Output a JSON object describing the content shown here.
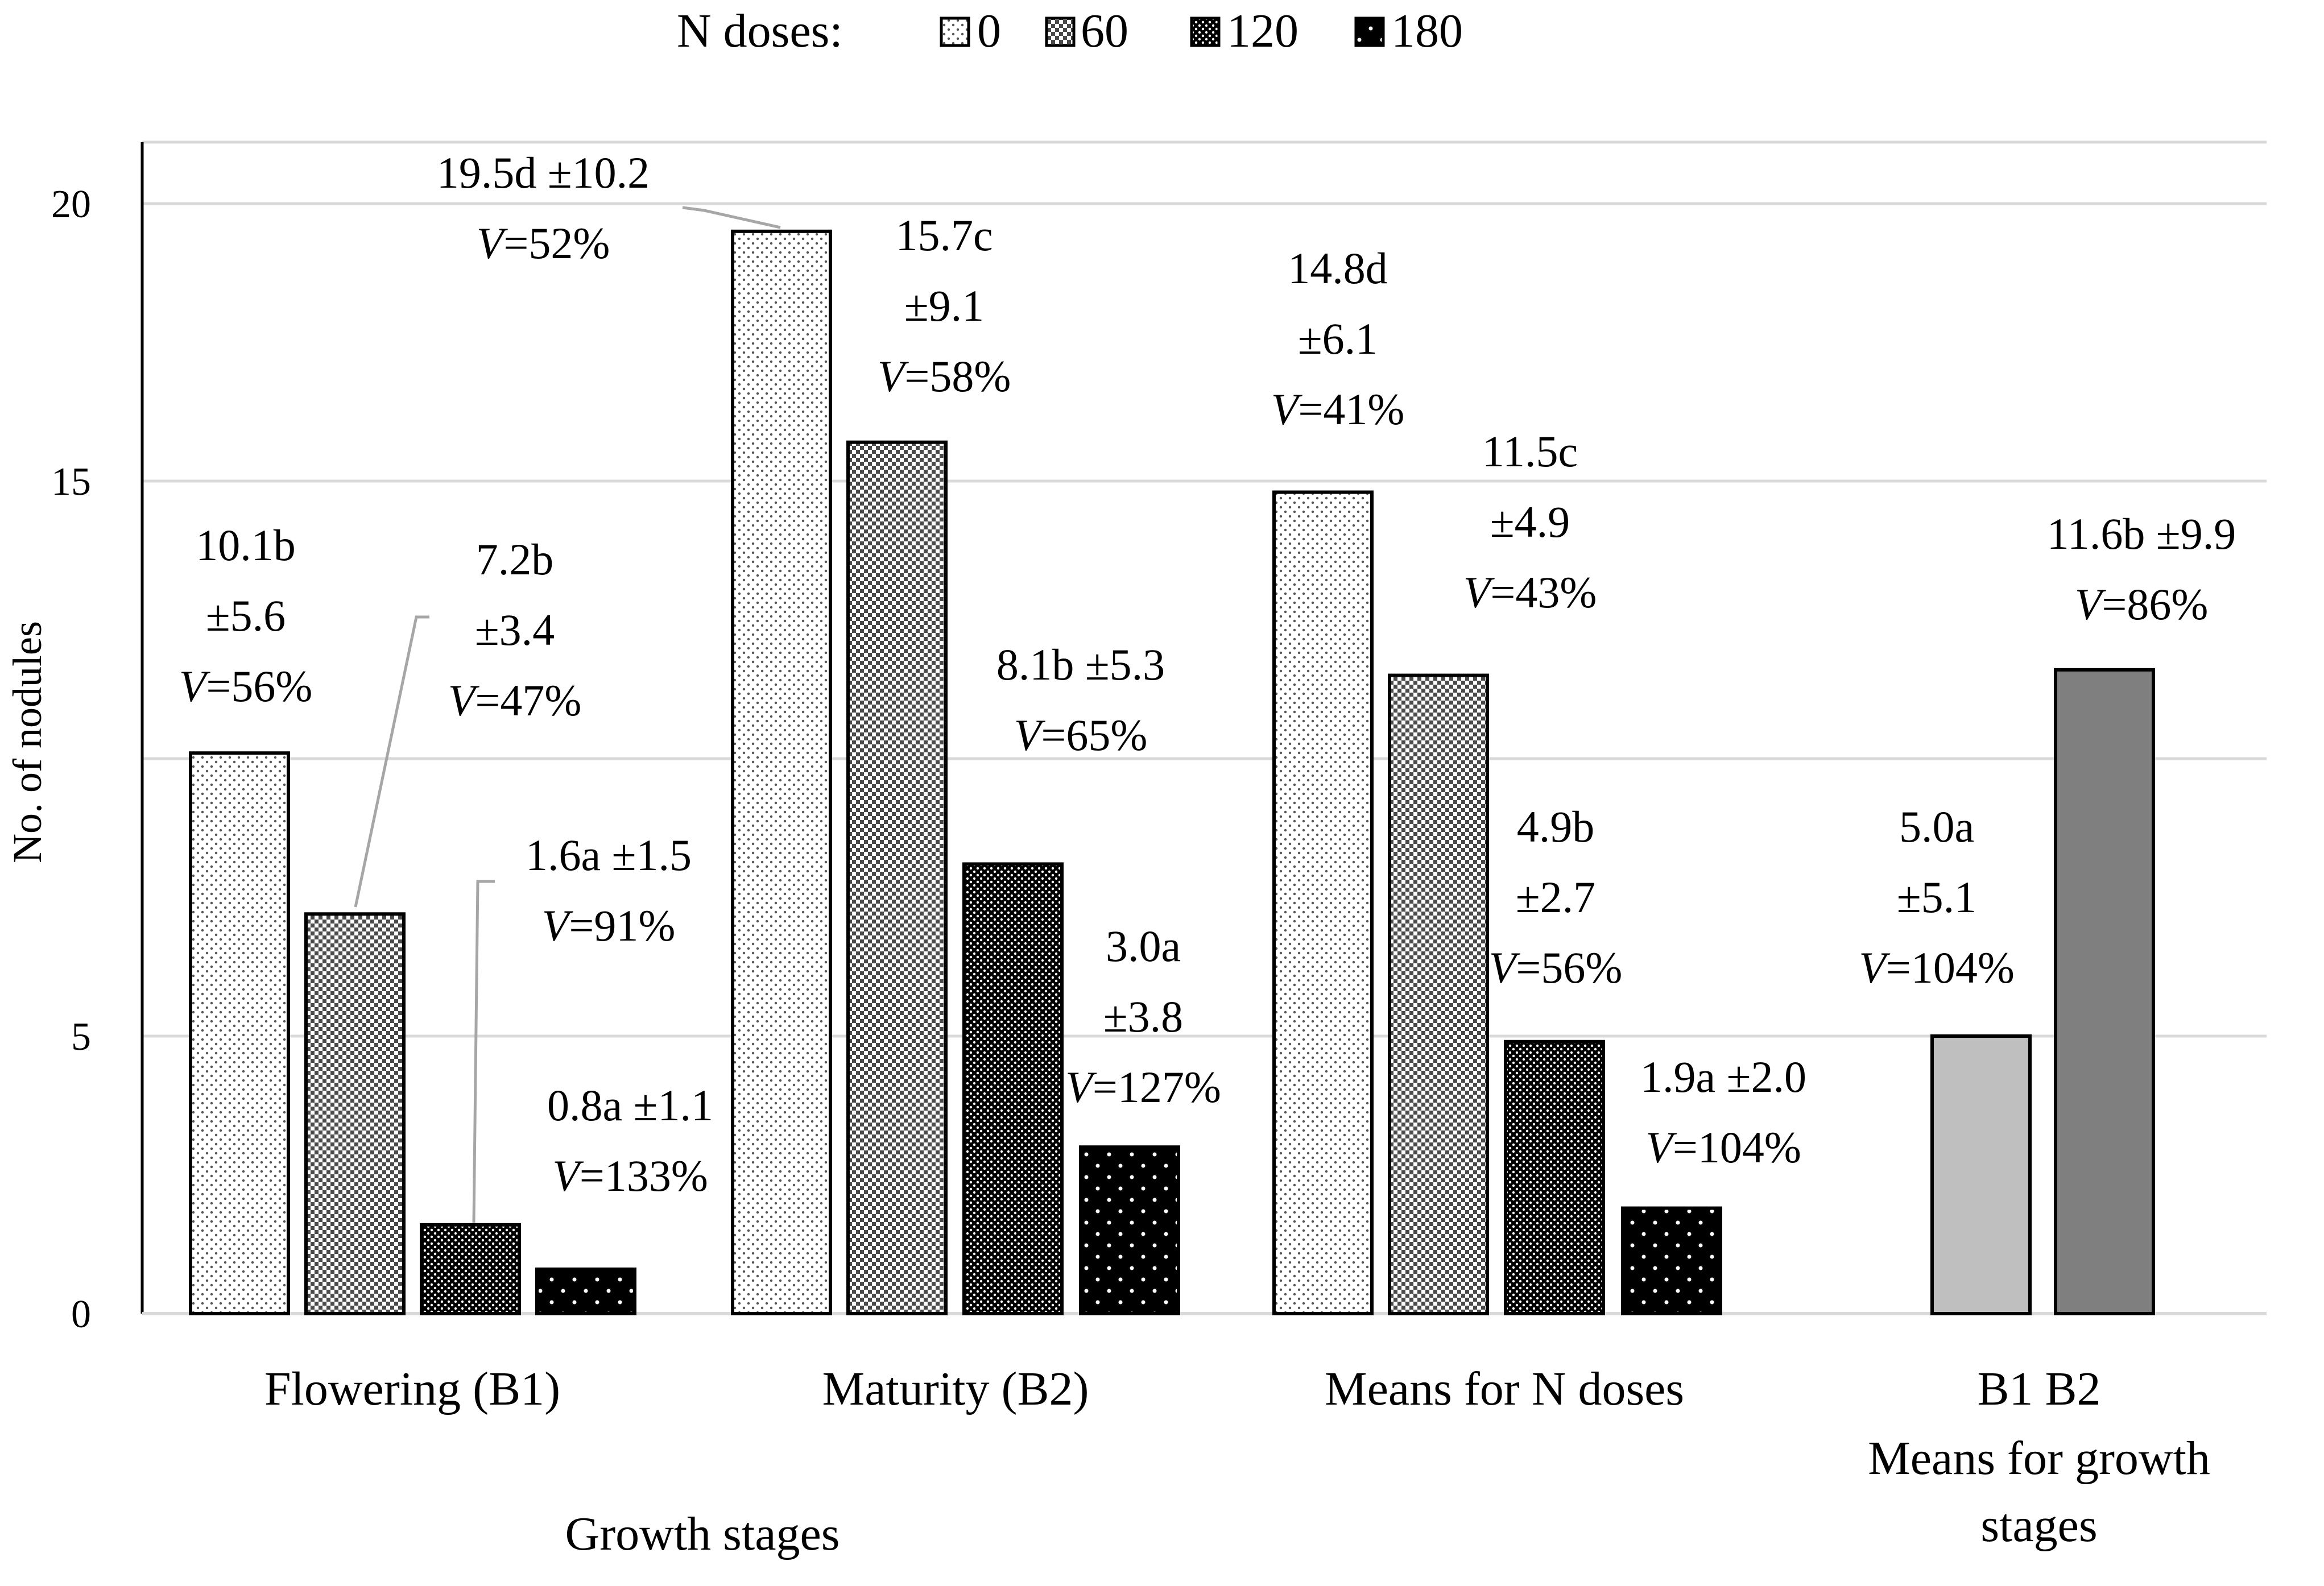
{
  "chart_data": {
    "type": "bar",
    "ylabel": "No. of nodules",
    "xlabel": "Growth stages",
    "ylim": [
      0,
      21
    ],
    "yticks": [
      0,
      5,
      15,
      20
    ],
    "grid": true,
    "legend": {
      "title": "N doses:",
      "placement": "top",
      "entries": [
        "0",
        "60",
        "120",
        "180"
      ]
    },
    "groups": [
      {
        "category": "Flowering (B1)",
        "bars": [
          {
            "series": "0",
            "value": 10.1,
            "label": [
              "10.1b",
              "±5.6",
              "V=56%"
            ]
          },
          {
            "series": "60",
            "value": 7.2,
            "label": [
              "7.2b",
              "±3.4",
              "V=47%"
            ]
          },
          {
            "series": "120",
            "value": 1.6,
            "label": [
              "1.6a ±1.5",
              "V=91%"
            ]
          },
          {
            "series": "180",
            "value": 0.8,
            "label": [
              "0.8a ±1.1",
              "V=133%"
            ]
          }
        ]
      },
      {
        "category": "Maturity (B2)",
        "bars": [
          {
            "series": "0",
            "value": 19.5,
            "label": [
              "19.5d ±10.2",
              "V=52%"
            ]
          },
          {
            "series": "60",
            "value": 15.7,
            "label": [
              "15.7c",
              "±9.1",
              "V=58%"
            ]
          },
          {
            "series": "120",
            "value": 8.1,
            "label": [
              "8.1b ±5.3",
              "V=65%"
            ]
          },
          {
            "series": "180",
            "value": 3.0,
            "label": [
              "3.0a",
              "±3.8",
              "V=127%"
            ]
          }
        ]
      },
      {
        "category": "Means for N doses",
        "bars": [
          {
            "series": "0",
            "value": 14.8,
            "label": [
              "14.8d",
              "±6.1",
              "V=41%"
            ]
          },
          {
            "series": "60",
            "value": 11.5,
            "label": [
              "11.5c",
              "±4.9",
              "V=43%"
            ]
          },
          {
            "series": "120",
            "value": 4.9,
            "label": [
              "4.9b",
              "±2.7",
              "V=56%"
            ]
          },
          {
            "series": "180",
            "value": 1.9,
            "label": [
              "1.9a ±2.0",
              "V=104%"
            ]
          }
        ]
      },
      {
        "category": "Means for growth stages",
        "sublabels": [
          "B1",
          "B2"
        ],
        "bars": [
          {
            "series": "B1",
            "value": 5.0,
            "label": [
              "5.0a",
              "±5.1",
              "V=104%"
            ]
          },
          {
            "series": "B2",
            "value": 11.6,
            "label": [
              "11.6b ±9.9",
              "V=86%"
            ]
          }
        ]
      }
    ],
    "colors": {
      "grid": "#d9d9d9",
      "b1": "#bfbfbf",
      "b2": "#7f7f7f",
      "leader": "#a6a6a6"
    }
  }
}
